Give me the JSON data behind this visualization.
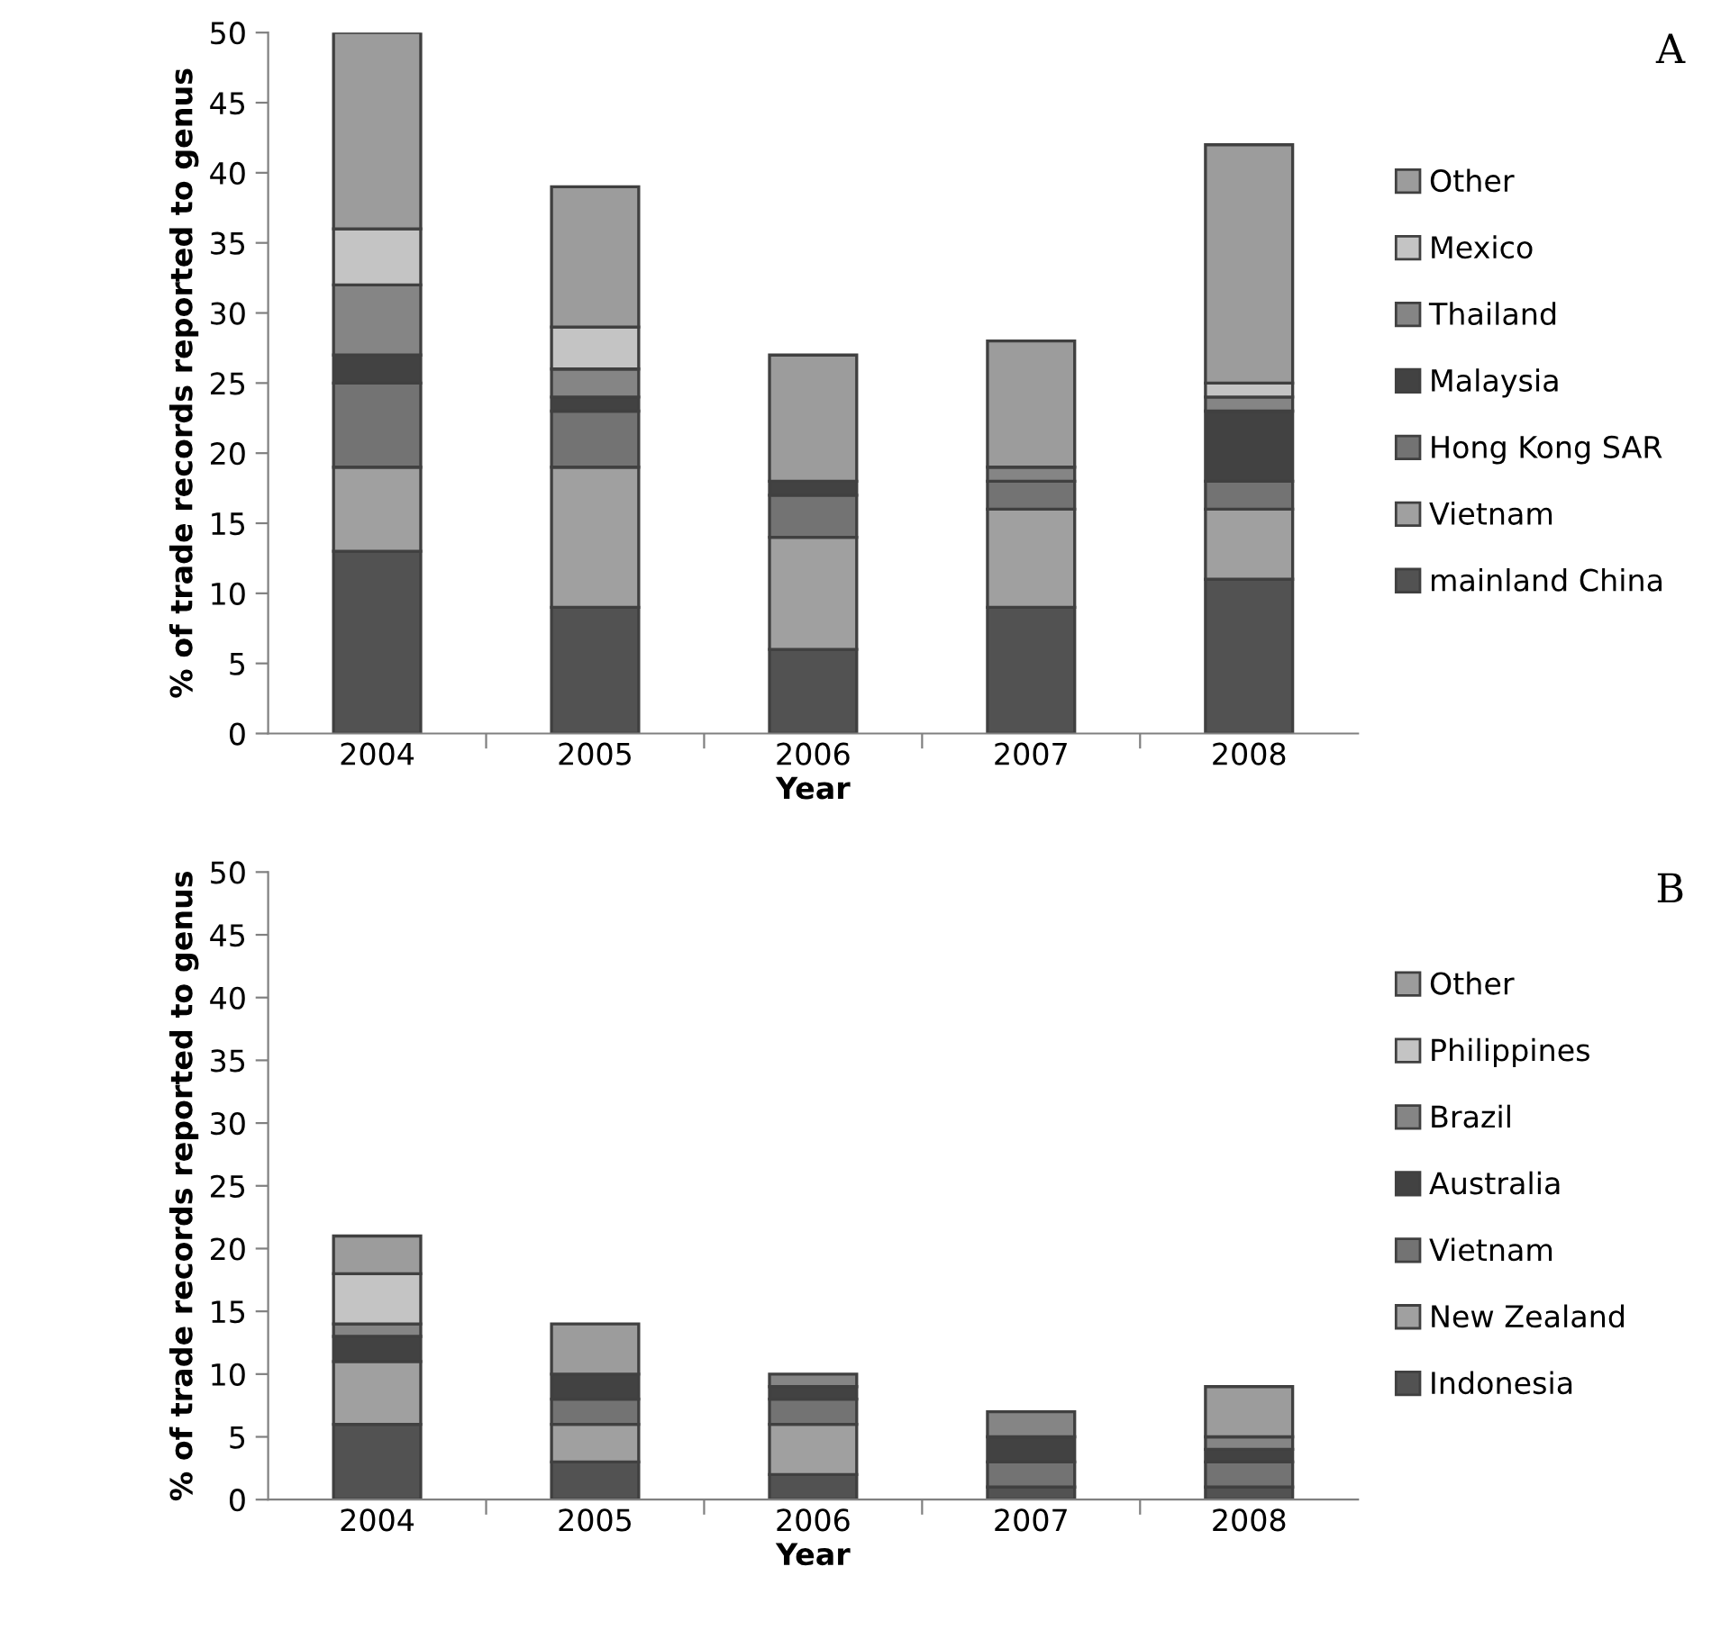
{
  "chart_data": [
    {
      "type": "bar",
      "stacked": true,
      "categories": [
        "2004",
        "2005",
        "2006",
        "2007",
        "2008"
      ],
      "xlabel": "Year",
      "ylabel": "% of trade records reported to genus",
      "ylim": [
        0,
        50
      ],
      "yticks": [
        0,
        5,
        10,
        15,
        20,
        25,
        30,
        35,
        40,
        45,
        50
      ],
      "grid": false,
      "legend": "right",
      "annotations": [
        "A"
      ],
      "series": [
        {
          "name": "mainland China",
          "color": "#525252",
          "values": [
            13,
            9,
            6,
            9,
            11
          ]
        },
        {
          "name": "Vietnam",
          "color": "#a0a0a0",
          "values": [
            6,
            10,
            8,
            7,
            5
          ]
        },
        {
          "name": "Hong Kong SAR",
          "color": "#737373",
          "values": [
            6,
            4,
            3,
            2,
            2
          ]
        },
        {
          "name": "Malaysia",
          "color": "#424242",
          "values": [
            2,
            1,
            1,
            0,
            5
          ]
        },
        {
          "name": "Thailand",
          "color": "#858585",
          "values": [
            5,
            2,
            0,
            1,
            1
          ]
        },
        {
          "name": "Mexico",
          "color": "#c4c4c4",
          "values": [
            4,
            3,
            0,
            0,
            1
          ]
        },
        {
          "name": "Other",
          "color": "#9c9c9c",
          "values": [
            14,
            10,
            9,
            9,
            17
          ]
        }
      ]
    },
    {
      "type": "bar",
      "stacked": true,
      "categories": [
        "2004",
        "2005",
        "2006",
        "2007",
        "2008"
      ],
      "xlabel": "Year",
      "ylabel": "% of trade records reported to genus",
      "ylim": [
        0,
        50
      ],
      "yticks": [
        0,
        5,
        10,
        15,
        20,
        25,
        30,
        35,
        40,
        45,
        50
      ],
      "grid": false,
      "legend": "right",
      "annotations": [
        "B"
      ],
      "series": [
        {
          "name": "Indonesia",
          "color": "#525252",
          "values": [
            6,
            3,
            2,
            1,
            1
          ]
        },
        {
          "name": "New Zealand",
          "color": "#a0a0a0",
          "values": [
            5,
            3,
            4,
            0,
            0
          ]
        },
        {
          "name": "Vietnam",
          "color": "#737373",
          "values": [
            0,
            2,
            2,
            2,
            2
          ]
        },
        {
          "name": "Australia",
          "color": "#424242",
          "values": [
            2,
            2,
            1,
            2,
            1
          ]
        },
        {
          "name": "Brazil",
          "color": "#858585",
          "values": [
            1,
            0,
            1,
            2,
            1
          ]
        },
        {
          "name": "Philippines",
          "color": "#c4c4c4",
          "values": [
            4,
            0,
            0,
            0,
            0
          ]
        },
        {
          "name": "Other",
          "color": "#9c9c9c",
          "values": [
            3,
            4,
            0,
            0,
            4
          ]
        }
      ]
    }
  ]
}
